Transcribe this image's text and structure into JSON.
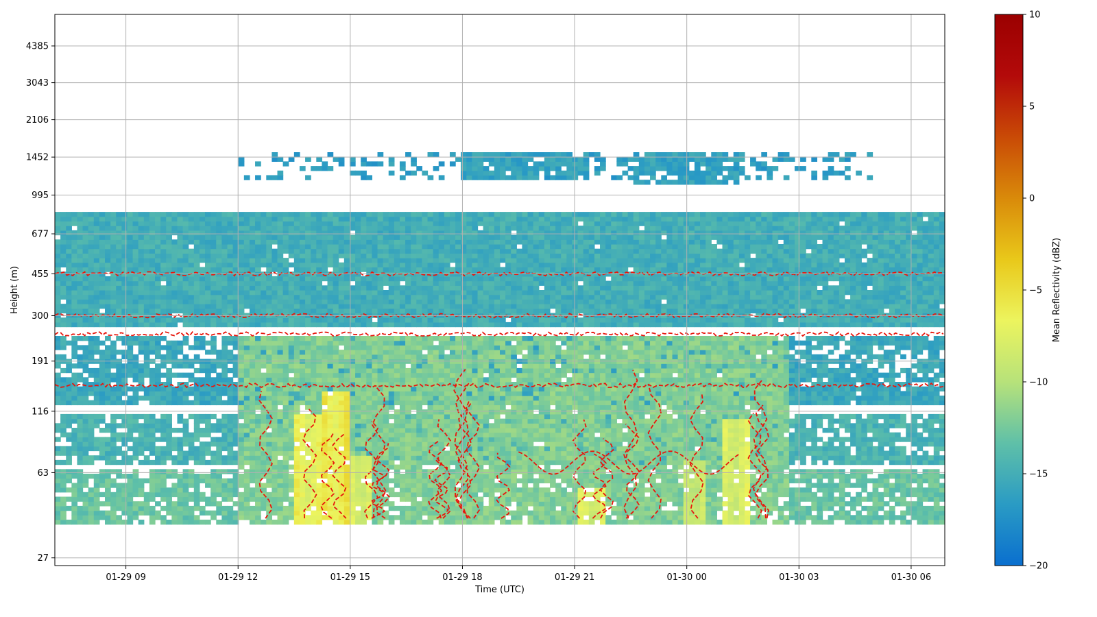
{
  "chart_data": {
    "type": "heatmap",
    "title": "",
    "xlabel": "Time (UTC)",
    "ylabel": "Height (m)",
    "x_ticks": [
      "01-29 09",
      "01-29 12",
      "01-29 15",
      "01-29 18",
      "01-29 21",
      "01-30 00",
      "01-30 03",
      "01-30 06"
    ],
    "x_tick_hours": [
      9,
      12,
      15,
      18,
      21,
      24,
      27,
      30
    ],
    "x_range_hours": [
      7.1,
      30.9
    ],
    "y_scale": "log",
    "y_ticks": [
      "27",
      "63",
      "116",
      "191",
      "300",
      "455",
      "677",
      "995",
      "1452",
      "2106",
      "3043",
      "4385"
    ],
    "y_tick_values": [
      27,
      63,
      116,
      191,
      300,
      455,
      677,
      995,
      1452,
      2106,
      3043,
      4385
    ],
    "y_range": [
      25,
      6000
    ],
    "grid": true,
    "colorbar": {
      "label": "Mean Reflectivity (dBZ)",
      "min": -20,
      "max": 10,
      "ticks": [
        "10",
        "5",
        "0",
        "−5",
        "−10",
        "−15",
        "−20"
      ],
      "tick_values": [
        10,
        5,
        0,
        -5,
        -10,
        -15,
        -20
      ],
      "colormap": [
        "#0a6fcf",
        "#2a9bc4",
        "#5fc0a8",
        "#b7e27a",
        "#ecf45e",
        "#e9c81a",
        "#d98a0a",
        "#c94a06",
        "#b30a0a",
        "#9b0000"
      ]
    },
    "layers": [
      {
        "name": "thin-cloud",
        "h_min": 1150,
        "h_max": 1520,
        "t_start": 12.0,
        "t_end": 29.0,
        "dbz": -16.5,
        "fill": 0.3
      },
      {
        "name": "cloud-core-a",
        "h_min": 1180,
        "h_max": 1520,
        "t_start": 18.0,
        "t_end": 21.4,
        "dbz": -16,
        "fill": 0.85
      },
      {
        "name": "cloud-core-b",
        "h_min": 1120,
        "h_max": 1520,
        "t_start": 22.6,
        "t_end": 25.6,
        "dbz": -16,
        "fill": 0.8
      },
      {
        "name": "upper-band",
        "h_min": 270,
        "h_max": 860,
        "t_start": 7.1,
        "t_end": 30.9,
        "dbz": -15,
        "fill": 0.98
      },
      {
        "name": "mid-band",
        "h_min": 140,
        "h_max": 245,
        "t_start": 7.1,
        "t_end": 30.9,
        "dbz": -15.5,
        "fill": 0.72
      },
      {
        "name": "mid-band-solid",
        "h_min": 122,
        "h_max": 150,
        "t_start": 7.1,
        "t_end": 30.9,
        "dbz": -15.5,
        "fill": 0.95
      },
      {
        "name": "low-band",
        "h_min": 68,
        "h_max": 112,
        "t_start": 7.1,
        "t_end": 30.9,
        "dbz": -14.5,
        "fill": 0.8
      },
      {
        "name": "near-surface",
        "h_min": 38,
        "h_max": 64,
        "t_start": 7.1,
        "t_end": 30.9,
        "dbz": -13,
        "fill": 0.82
      },
      {
        "name": "precip",
        "h_min": 38,
        "h_max": 240,
        "t_start": 12.0,
        "t_end": 26.8,
        "dbz": -12,
        "fill": 0.9
      }
    ],
    "hotspots": [
      {
        "t_center": 13.9,
        "h_max": 115,
        "dbz": -8
      },
      {
        "t_center": 14.6,
        "h_max": 145,
        "dbz": -7
      },
      {
        "t_center": 15.3,
        "h_max": 75,
        "dbz": -9
      },
      {
        "t_center": 21.5,
        "h_max": 55,
        "dbz": -9
      },
      {
        "t_center": 24.2,
        "h_max": 70,
        "dbz": -10
      },
      {
        "t_center": 25.3,
        "h_max": 110,
        "dbz": -9
      }
    ],
    "contour_levels": [
      455,
      300,
      250,
      150
    ],
    "contour_color": "#e8160c"
  }
}
